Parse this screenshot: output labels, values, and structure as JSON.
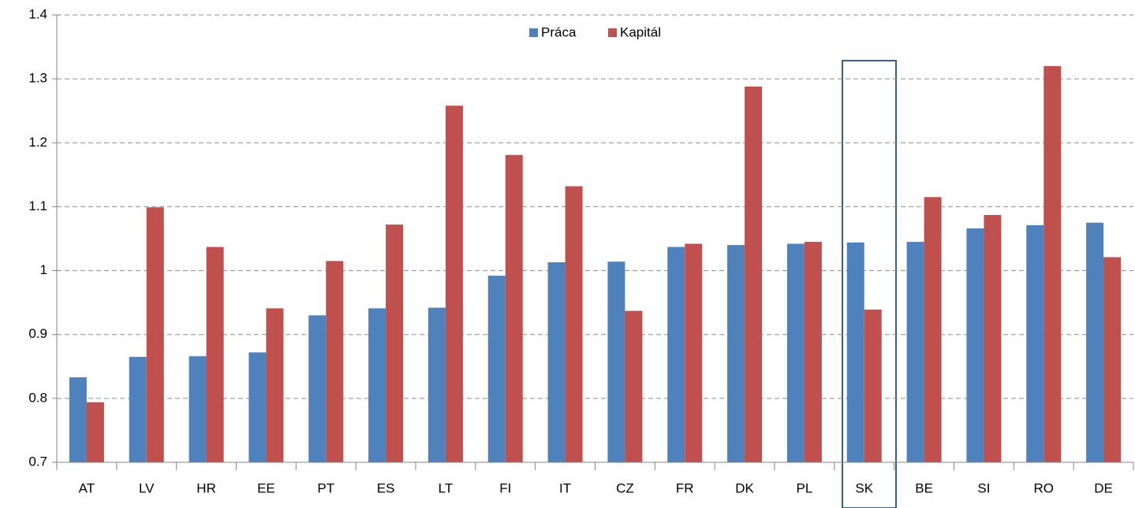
{
  "chart_data": {
    "type": "bar",
    "categories": [
      "AT",
      "LV",
      "HR",
      "EE",
      "PT",
      "ES",
      "LT",
      "FI",
      "IT",
      "CZ",
      "FR",
      "DK",
      "PL",
      "SK",
      "BE",
      "SI",
      "RO",
      "DE"
    ],
    "series": [
      {
        "name": "Práca",
        "color": "#4f81bd",
        "values": [
          0.833,
          0.865,
          0.866,
          0.872,
          0.93,
          0.941,
          0.942,
          0.992,
          1.013,
          1.014,
          1.037,
          1.04,
          1.042,
          1.044,
          1.045,
          1.066,
          1.071,
          1.075
        ]
      },
      {
        "name": "Kapitál",
        "color": "#c0504d",
        "values": [
          0.794,
          1.099,
          1.037,
          0.941,
          1.015,
          1.072,
          1.258,
          1.181,
          1.132,
          0.937,
          1.042,
          1.288,
          1.045,
          0.939,
          1.115,
          1.087,
          1.32,
          1.021
        ]
      }
    ],
    "ylim": [
      0.7,
      1.4
    ],
    "yticks": [
      0.7,
      0.8,
      0.9,
      1,
      1.1,
      1.2,
      1.3,
      1.4
    ],
    "grid": true,
    "legend": "top"
  }
}
